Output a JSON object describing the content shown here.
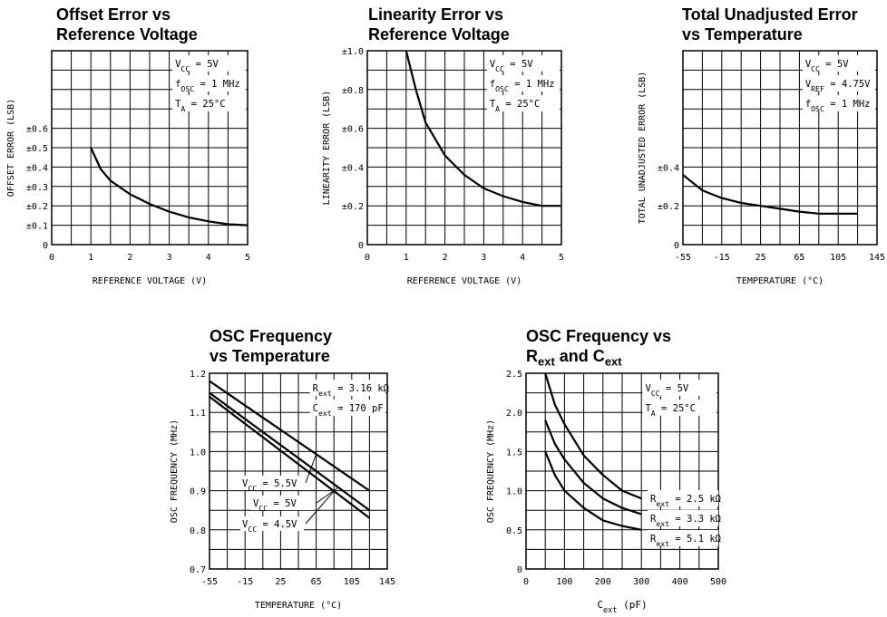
{
  "page": {
    "background": "#ffffff",
    "ink": "#000000"
  },
  "chart_data": [
    {
      "id": "offset",
      "type": "line",
      "title": "Offset Error vs\nReference Voltage",
      "xlabel": "REFERENCE VOLTAGE (V)",
      "ylabel": "OFFSET ERROR (LSB)",
      "xlim": [
        0,
        5
      ],
      "ylim": [
        0,
        1.0
      ],
      "xticks": [
        "0",
        "1",
        "2",
        "3",
        "4",
        "5"
      ],
      "yticks": [
        {
          "v": 0,
          "t": "0"
        },
        {
          "v": 0.1,
          "t": "±0.1"
        },
        {
          "v": 0.2,
          "t": "±0.2"
        },
        {
          "v": 0.3,
          "t": "±0.3"
        },
        {
          "v": 0.4,
          "t": "±0.4"
        },
        {
          "v": 0.5,
          "t": "±0.5"
        },
        {
          "v": 0.6,
          "t": "±0.6"
        }
      ],
      "grid": true,
      "annotation": [
        {
          "base": "V",
          "sub": "CC",
          "rest": " = 5V"
        },
        {
          "base": "f",
          "sub": "OSC",
          "rest": " = 1 MHz"
        },
        {
          "base": "T",
          "sub": "A",
          "rest": " = 25°C"
        }
      ],
      "series": [
        {
          "x": [
            1.0,
            1.25,
            1.5,
            2.0,
            2.5,
            3.0,
            3.5,
            4.0,
            4.5,
            5.0
          ],
          "y": [
            0.5,
            0.39,
            0.33,
            0.26,
            0.21,
            0.17,
            0.14,
            0.12,
            0.105,
            0.1
          ]
        }
      ]
    },
    {
      "id": "linearity",
      "type": "line",
      "title": "Linearity Error vs\nReference Voltage",
      "xlabel": "REFERENCE VOLTAGE (V)",
      "ylabel": "LINEARITY ERROR (LSB)",
      "xlim": [
        0,
        5
      ],
      "ylim": [
        0,
        1.0
      ],
      "xticks": [
        "0",
        "1",
        "2",
        "3",
        "4",
        "5"
      ],
      "yticks": [
        {
          "v": 0,
          "t": "0"
        },
        {
          "v": 0.2,
          "t": "±0.2"
        },
        {
          "v": 0.4,
          "t": "±0.4"
        },
        {
          "v": 0.6,
          "t": "±0.6"
        },
        {
          "v": 0.8,
          "t": "±0.8"
        },
        {
          "v": 1.0,
          "t": "±1.0"
        }
      ],
      "grid": true,
      "annotation": [
        {
          "base": "V",
          "sub": "CC",
          "rest": " = 5V"
        },
        {
          "base": "f",
          "sub": "OSC",
          "rest": " = 1 MHz"
        },
        {
          "base": "T",
          "sub": "A",
          "rest": " = 25°C"
        }
      ],
      "series": [
        {
          "x": [
            1.0,
            1.25,
            1.5,
            2.0,
            2.5,
            3.0,
            3.5,
            4.0,
            4.5,
            5.0
          ],
          "y": [
            1.0,
            0.8,
            0.63,
            0.46,
            0.36,
            0.29,
            0.25,
            0.22,
            0.2,
            0.2
          ]
        }
      ]
    },
    {
      "id": "tue",
      "type": "line",
      "title": "Total Unadjusted Error\nvs Temperature",
      "xlabel": "TEMPERATURE (°C)",
      "ylabel": "TOTAL UNADJUSTED ERROR (LSB)",
      "xlim": [
        -55,
        145
      ],
      "ylim": [
        0,
        1.0
      ],
      "xticks": [
        "-55",
        "-15",
        "25",
        "65",
        "105",
        "145"
      ],
      "yticks": [
        {
          "v": 0,
          "t": "0"
        },
        {
          "v": 0.2,
          "t": "±0.2"
        },
        {
          "v": 0.4,
          "t": "±0.4"
        }
      ],
      "grid": true,
      "annotation": [
        {
          "base": "V",
          "sub": "CC",
          "rest": " = 5V"
        },
        {
          "base": "V",
          "sub": "REF",
          "rest": " = 4.75V"
        },
        {
          "base": "f",
          "sub": "OSC",
          "rest": " = 1 MHz"
        }
      ],
      "series": [
        {
          "x": [
            -55,
            -35,
            -15,
            5,
            25,
            45,
            65,
            85,
            105,
            125
          ],
          "y": [
            0.36,
            0.28,
            0.24,
            0.215,
            0.2,
            0.185,
            0.17,
            0.16,
            0.16,
            0.16
          ]
        }
      ]
    },
    {
      "id": "osc_temp",
      "type": "line",
      "title": "OSC Frequency\nvs Temperature",
      "xlabel": "TEMPERATURE (°C)",
      "ylabel": "OSC FREQUENCY (MHz)",
      "xlim": [
        -55,
        145
      ],
      "ylim": [
        0.7,
        1.2
      ],
      "xticks": [
        "-55",
        "-15",
        "25",
        "65",
        "105",
        "145"
      ],
      "yticks": [
        {
          "v": 0.7,
          "t": "0.7"
        },
        {
          "v": 0.8,
          "t": "0.8"
        },
        {
          "v": 0.9,
          "t": "0.9"
        },
        {
          "v": 1.0,
          "t": "1.0"
        },
        {
          "v": 1.1,
          "t": "1.1"
        },
        {
          "v": 1.2,
          "t": "1.2"
        }
      ],
      "grid": true,
      "annotation": [
        {
          "base": "R",
          "sub": "ext",
          "rest": " = 3.16 kΩ"
        },
        {
          "base": "C",
          "sub": "ext",
          "rest": " = 170 pF"
        }
      ],
      "series": [
        {
          "name": "V_CC = 5.5V",
          "label": {
            "base": "V",
            "sub": "CC",
            "rest": " = 5.5V"
          },
          "x": [
            -55,
            125
          ],
          "y": [
            1.18,
            0.9
          ]
        },
        {
          "name": "V_CC = 5V",
          "label": {
            "base": "V",
            "sub": "CC",
            "rest": " = 5V"
          },
          "x": [
            -55,
            125
          ],
          "y": [
            1.15,
            0.85
          ]
        },
        {
          "name": "V_CC = 4.5V",
          "label": {
            "base": "V",
            "sub": "CC",
            "rest": " = 4.5V"
          },
          "x": [
            -55,
            125
          ],
          "y": [
            1.14,
            0.83
          ]
        }
      ]
    },
    {
      "id": "osc_rc",
      "type": "line",
      "title": "OSC Frequency vs\nR_ext and C_ext",
      "title_rich": [
        {
          "t": "OSC Frequency vs"
        },
        {
          "br": true
        },
        {
          "t": "R"
        },
        {
          "sub": "ext"
        },
        {
          "t": " and C"
        },
        {
          "sub": "ext"
        }
      ],
      "xlabel_rich": {
        "base": "C",
        "sub": "ext",
        "rest": " (pF)"
      },
      "ylabel": "OSC FREQUENCY (MHz)",
      "xlim": [
        0,
        500
      ],
      "ylim": [
        0,
        2.5
      ],
      "xticks": [
        "0",
        "100",
        "200",
        "300",
        "400",
        "500"
      ],
      "yticks": [
        {
          "v": 0,
          "t": "0"
        },
        {
          "v": 0.5,
          "t": "0.5"
        },
        {
          "v": 1.0,
          "t": "1.0"
        },
        {
          "v": 1.5,
          "t": "1.5"
        },
        {
          "v": 2.0,
          "t": "2.0"
        },
        {
          "v": 2.5,
          "t": "2.5"
        }
      ],
      "grid": true,
      "annotation": [
        {
          "base": "V",
          "sub": "CC",
          "rest": " = 5V"
        },
        {
          "base": "T",
          "sub": "A",
          "rest": " = 25°C"
        }
      ],
      "series": [
        {
          "name": "R_ext = 2.5 kΩ",
          "label": {
            "base": "R",
            "sub": "ext",
            "rest": " = 2.5 kΩ"
          },
          "x": [
            50,
            75,
            100,
            150,
            200,
            250,
            300
          ],
          "y": [
            2.5,
            2.1,
            1.85,
            1.45,
            1.2,
            1.0,
            0.9
          ]
        },
        {
          "name": "R_ext = 3.3 kΩ",
          "label": {
            "base": "R",
            "sub": "ext",
            "rest": " = 3.3 kΩ"
          },
          "x": [
            50,
            75,
            100,
            150,
            200,
            250,
            300
          ],
          "y": [
            1.9,
            1.6,
            1.4,
            1.1,
            0.9,
            0.78,
            0.7
          ]
        },
        {
          "name": "R_ext = 5.1 kΩ",
          "label": {
            "base": "R",
            "sub": "ext",
            "rest": " = 5.1 kΩ"
          },
          "x": [
            50,
            75,
            100,
            150,
            200,
            250,
            300
          ],
          "y": [
            1.5,
            1.2,
            1.0,
            0.78,
            0.62,
            0.55,
            0.5
          ]
        }
      ]
    }
  ]
}
